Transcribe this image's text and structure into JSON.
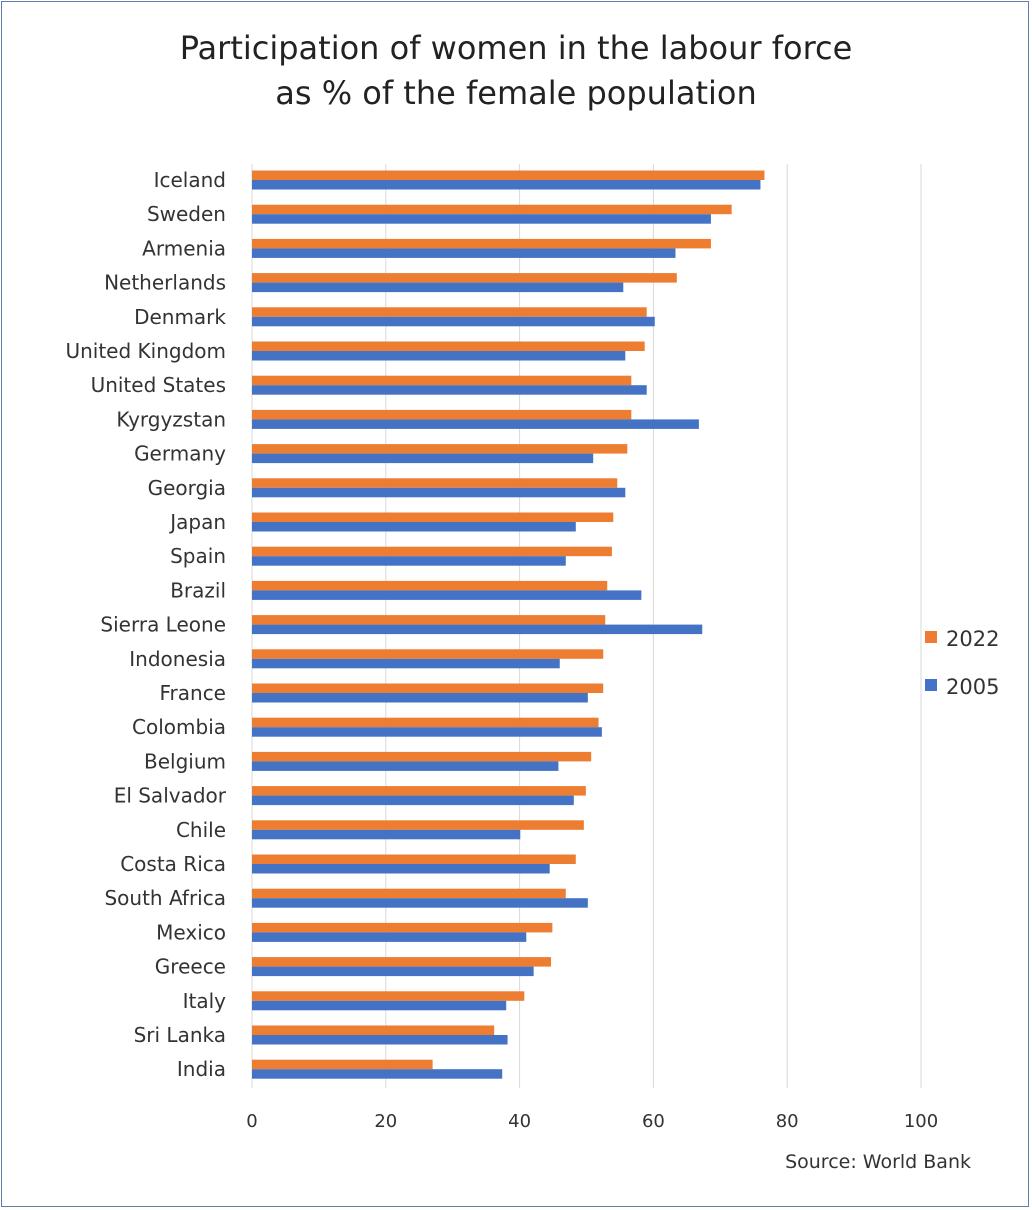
{
  "chart_data": {
    "type": "bar",
    "orientation": "horizontal",
    "title_lines": [
      "Participation of women in the labour force",
      "as % of the female population"
    ],
    "categories": [
      "Iceland",
      "Sweden",
      "Armenia",
      "Netherlands",
      "Denmark",
      "United Kingdom",
      "United States",
      "Kyrgyzstan",
      "Germany",
      "Georgia",
      "Japan",
      "Spain",
      "Brazil",
      "Sierra Leone",
      "Indonesia",
      "France",
      "Colombia",
      "Belgium",
      "El Salvador",
      "Chile",
      "Costa Rica",
      "South Africa",
      "Mexico",
      "Greece",
      "Italy",
      "Sri Lanka",
      "India"
    ],
    "series": [
      {
        "name": "2022",
        "color": "#ed7d31",
        "values": [
          76.6,
          71.7,
          68.6,
          63.5,
          59.0,
          58.7,
          56.7,
          56.7,
          56.1,
          54.6,
          54.0,
          53.8,
          53.1,
          52.8,
          52.5,
          52.5,
          51.8,
          50.7,
          49.9,
          49.6,
          48.4,
          46.9,
          44.9,
          44.7,
          40.7,
          36.2,
          27.0
        ]
      },
      {
        "name": "2005",
        "color": "#4472c4",
        "values": [
          76.0,
          68.6,
          63.3,
          55.5,
          60.2,
          55.8,
          59.0,
          66.8,
          51.0,
          55.8,
          48.4,
          46.9,
          58.2,
          67.3,
          46.0,
          50.2,
          52.3,
          45.8,
          48.1,
          40.1,
          44.5,
          50.2,
          41.0,
          42.1,
          38.0,
          38.2,
          37.4
        ]
      }
    ],
    "xlim": [
      0,
      100
    ],
    "xticks": [
      0,
      20,
      40,
      60,
      80,
      100
    ],
    "grid": true,
    "legend_position": "right",
    "xlabel": "",
    "ylabel": "",
    "source": "Source: World Bank"
  }
}
